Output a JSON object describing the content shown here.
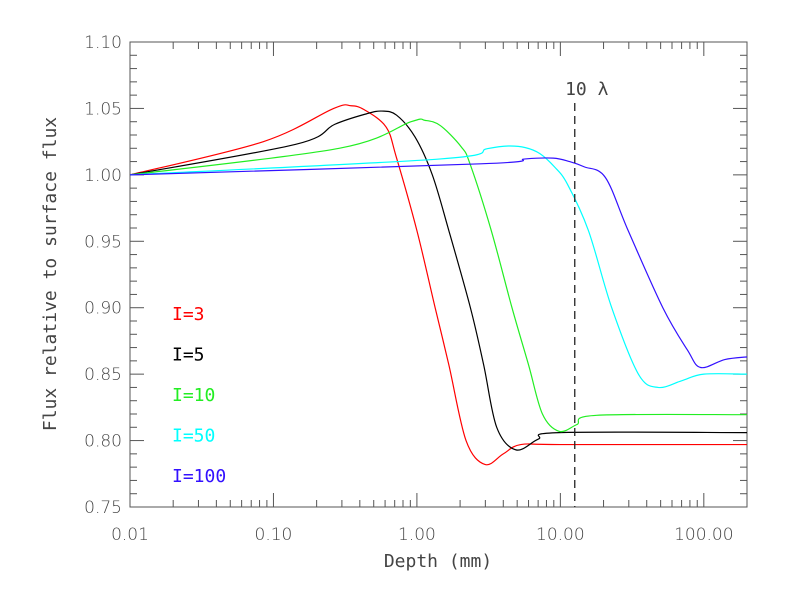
{
  "chart_data": {
    "type": "line",
    "title": "",
    "xlabel": "Depth (mm)",
    "ylabel": "Flux relative to surface flux",
    "xscale": "log",
    "xlim": [
      0.01,
      200
    ],
    "ylim": [
      0.75,
      1.1
    ],
    "x_ticks": [
      0.01,
      0.1,
      1,
      10,
      100
    ],
    "x_tick_labels": [
      "0.01",
      "0.10",
      "1.00",
      "10.00",
      "100.00"
    ],
    "y_ticks": [
      0.75,
      0.8,
      0.85,
      0.9,
      0.95,
      1.0,
      1.05,
      1.1
    ],
    "y_tick_labels": [
      "0.75",
      "0.80",
      "0.85",
      "0.90",
      "0.95",
      "1.00",
      "1.05",
      "1.10"
    ],
    "grid": false,
    "legend_placement": "left",
    "annotation": {
      "text": "10 λ",
      "x": 12.6,
      "style": "dashed vertical line"
    },
    "series": [
      {
        "name": "I=3",
        "color": "#ff0000",
        "x": [
          0.01,
          0.085,
          0.263,
          0.347,
          0.43,
          0.61,
          0.72,
          1.0,
          1.34,
          1.67,
          2.2,
          2.98,
          4.0,
          5.3,
          10,
          200
        ],
        "y": [
          1.0,
          1.025,
          1.05,
          1.052,
          1.049,
          1.036,
          1.013,
          0.958,
          0.9,
          0.857,
          0.8,
          0.782,
          0.79,
          0.797,
          0.797,
          0.797
        ]
      },
      {
        "name": "I=5",
        "color": "#000000",
        "x": [
          0.01,
          0.143,
          0.267,
          0.447,
          0.57,
          0.72,
          0.97,
          1.28,
          1.67,
          2.36,
          2.92,
          3.6,
          4.9,
          7.0,
          9.8,
          200
        ],
        "y": [
          1.0,
          1.023,
          1.038,
          1.046,
          1.048,
          1.045,
          1.0285,
          1.0,
          0.958,
          0.9,
          0.857,
          0.81,
          0.793,
          0.801,
          0.806,
          0.806
        ]
      },
      {
        "name": "I=10",
        "color": "#22ee22",
        "x": [
          0.01,
          0.287,
          0.91,
          1.14,
          1.46,
          2.04,
          2.35,
          3.3,
          4.6,
          6.0,
          7.5,
          9.8,
          13,
          17.9,
          200
        ],
        "y": [
          1.0,
          1.02,
          1.04,
          1.041,
          1.037,
          1.021,
          1.008,
          0.958,
          0.9,
          0.857,
          0.82,
          0.807,
          0.812,
          0.819,
          0.8195
        ]
      },
      {
        "name": "I=50",
        "color": "#00ffff",
        "x": [
          0.01,
          1.46,
          3.09,
          4.33,
          5.7,
          7.2,
          9.1,
          11.2,
          15.7,
          22.8,
          35,
          48,
          70,
          100,
          200
        ],
        "y": [
          1.0,
          1.012,
          1.0197,
          1.0217,
          1.0205,
          1.016,
          1.006,
          0.993,
          0.958,
          0.9,
          0.85,
          0.84,
          0.845,
          0.85,
          0.85
        ]
      },
      {
        "name": "I=100",
        "color": "#3311ff",
        "x": [
          0.01,
          2.78,
          5.7,
          8.9,
          11.6,
          14.7,
          20.6,
          29.7,
          51.8,
          77,
          95,
          140,
          200
        ],
        "y": [
          1.0,
          1.0083,
          1.012,
          1.0126,
          1.01,
          1.006,
          0.998,
          0.958,
          0.9,
          0.868,
          0.855,
          0.861,
          0.863
        ]
      }
    ]
  }
}
